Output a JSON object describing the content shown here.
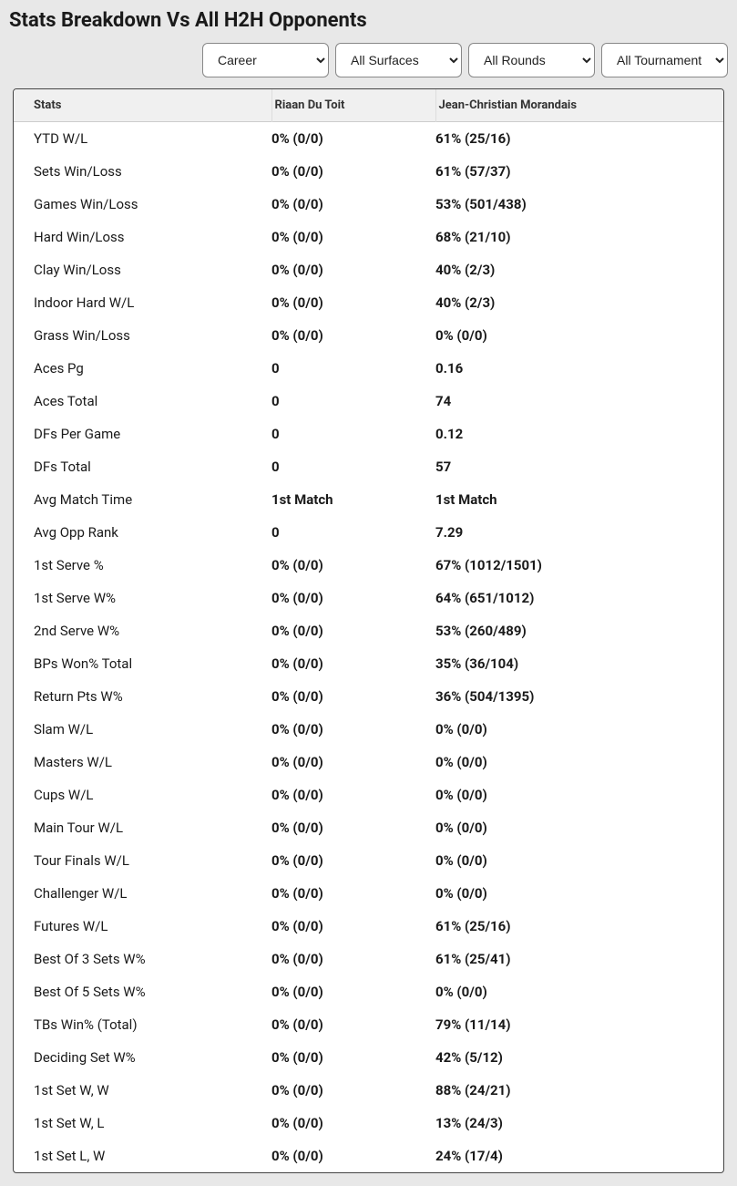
{
  "title": "Stats Breakdown Vs All H2H Opponents",
  "filters": {
    "career": {
      "selected": "Career",
      "options": [
        "Career"
      ]
    },
    "surfaces": {
      "selected": "All Surfaces",
      "options": [
        "All Surfaces"
      ]
    },
    "rounds": {
      "selected": "All Rounds",
      "options": [
        "All Rounds"
      ]
    },
    "tournaments": {
      "selected": "All Tournaments",
      "options": [
        "All Tournaments"
      ]
    }
  },
  "table": {
    "columns": {
      "stats": "Stats",
      "player1": "Riaan Du Toit",
      "player2": "Jean-Christian Morandais"
    },
    "rows": [
      {
        "stat": "YTD W/L",
        "p1": "0% (0/0)",
        "p2": "61% (25/16)"
      },
      {
        "stat": "Sets Win/Loss",
        "p1": "0% (0/0)",
        "p2": "61% (57/37)"
      },
      {
        "stat": "Games Win/Loss",
        "p1": "0% (0/0)",
        "p2": "53% (501/438)"
      },
      {
        "stat": "Hard Win/Loss",
        "p1": "0% (0/0)",
        "p2": "68% (21/10)"
      },
      {
        "stat": "Clay Win/Loss",
        "p1": "0% (0/0)",
        "p2": "40% (2/3)"
      },
      {
        "stat": "Indoor Hard W/L",
        "p1": "0% (0/0)",
        "p2": "40% (2/3)"
      },
      {
        "stat": "Grass Win/Loss",
        "p1": "0% (0/0)",
        "p2": "0% (0/0)"
      },
      {
        "stat": "Aces Pg",
        "p1": "0",
        "p2": "0.16"
      },
      {
        "stat": "Aces Total",
        "p1": "0",
        "p2": "74"
      },
      {
        "stat": "DFs Per Game",
        "p1": "0",
        "p2": "0.12"
      },
      {
        "stat": "DFs Total",
        "p1": "0",
        "p2": "57"
      },
      {
        "stat": "Avg Match Time",
        "p1": "1st Match",
        "p2": "1st Match"
      },
      {
        "stat": "Avg Opp Rank",
        "p1": "0",
        "p2": "7.29"
      },
      {
        "stat": "1st Serve %",
        "p1": "0% (0/0)",
        "p2": "67% (1012/1501)"
      },
      {
        "stat": "1st Serve W%",
        "p1": "0% (0/0)",
        "p2": "64% (651/1012)"
      },
      {
        "stat": "2nd Serve W%",
        "p1": "0% (0/0)",
        "p2": "53% (260/489)"
      },
      {
        "stat": "BPs Won% Total",
        "p1": "0% (0/0)",
        "p2": "35% (36/104)"
      },
      {
        "stat": "Return Pts W%",
        "p1": "0% (0/0)",
        "p2": "36% (504/1395)"
      },
      {
        "stat": "Slam W/L",
        "p1": "0% (0/0)",
        "p2": "0% (0/0)"
      },
      {
        "stat": "Masters W/L",
        "p1": "0% (0/0)",
        "p2": "0% (0/0)"
      },
      {
        "stat": "Cups W/L",
        "p1": "0% (0/0)",
        "p2": "0% (0/0)"
      },
      {
        "stat": "Main Tour W/L",
        "p1": "0% (0/0)",
        "p2": "0% (0/0)"
      },
      {
        "stat": "Tour Finals W/L",
        "p1": "0% (0/0)",
        "p2": "0% (0/0)"
      },
      {
        "stat": "Challenger W/L",
        "p1": "0% (0/0)",
        "p2": "0% (0/0)"
      },
      {
        "stat": "Futures W/L",
        "p1": "0% (0/0)",
        "p2": "61% (25/16)"
      },
      {
        "stat": "Best Of 3 Sets W%",
        "p1": "0% (0/0)",
        "p2": "61% (25/41)"
      },
      {
        "stat": "Best Of 5 Sets W%",
        "p1": "0% (0/0)",
        "p2": "0% (0/0)"
      },
      {
        "stat": "TBs Win% (Total)",
        "p1": "0% (0/0)",
        "p2": "79% (11/14)"
      },
      {
        "stat": "Deciding Set W%",
        "p1": "0% (0/0)",
        "p2": "42% (5/12)"
      },
      {
        "stat": "1st Set W, W",
        "p1": "0% (0/0)",
        "p2": "88% (24/21)"
      },
      {
        "stat": "1st Set W, L",
        "p1": "0% (0/0)",
        "p2": "13% (24/3)"
      },
      {
        "stat": "1st Set L, W",
        "p1": "0% (0/0)",
        "p2": "24% (17/4)"
      }
    ]
  },
  "style": {
    "page_bg": "#e8e8e8",
    "card_bg": "#ffffff",
    "header_bg": "#f0f0f0",
    "border_color": "#444",
    "text_color": "#1a1a1a"
  }
}
